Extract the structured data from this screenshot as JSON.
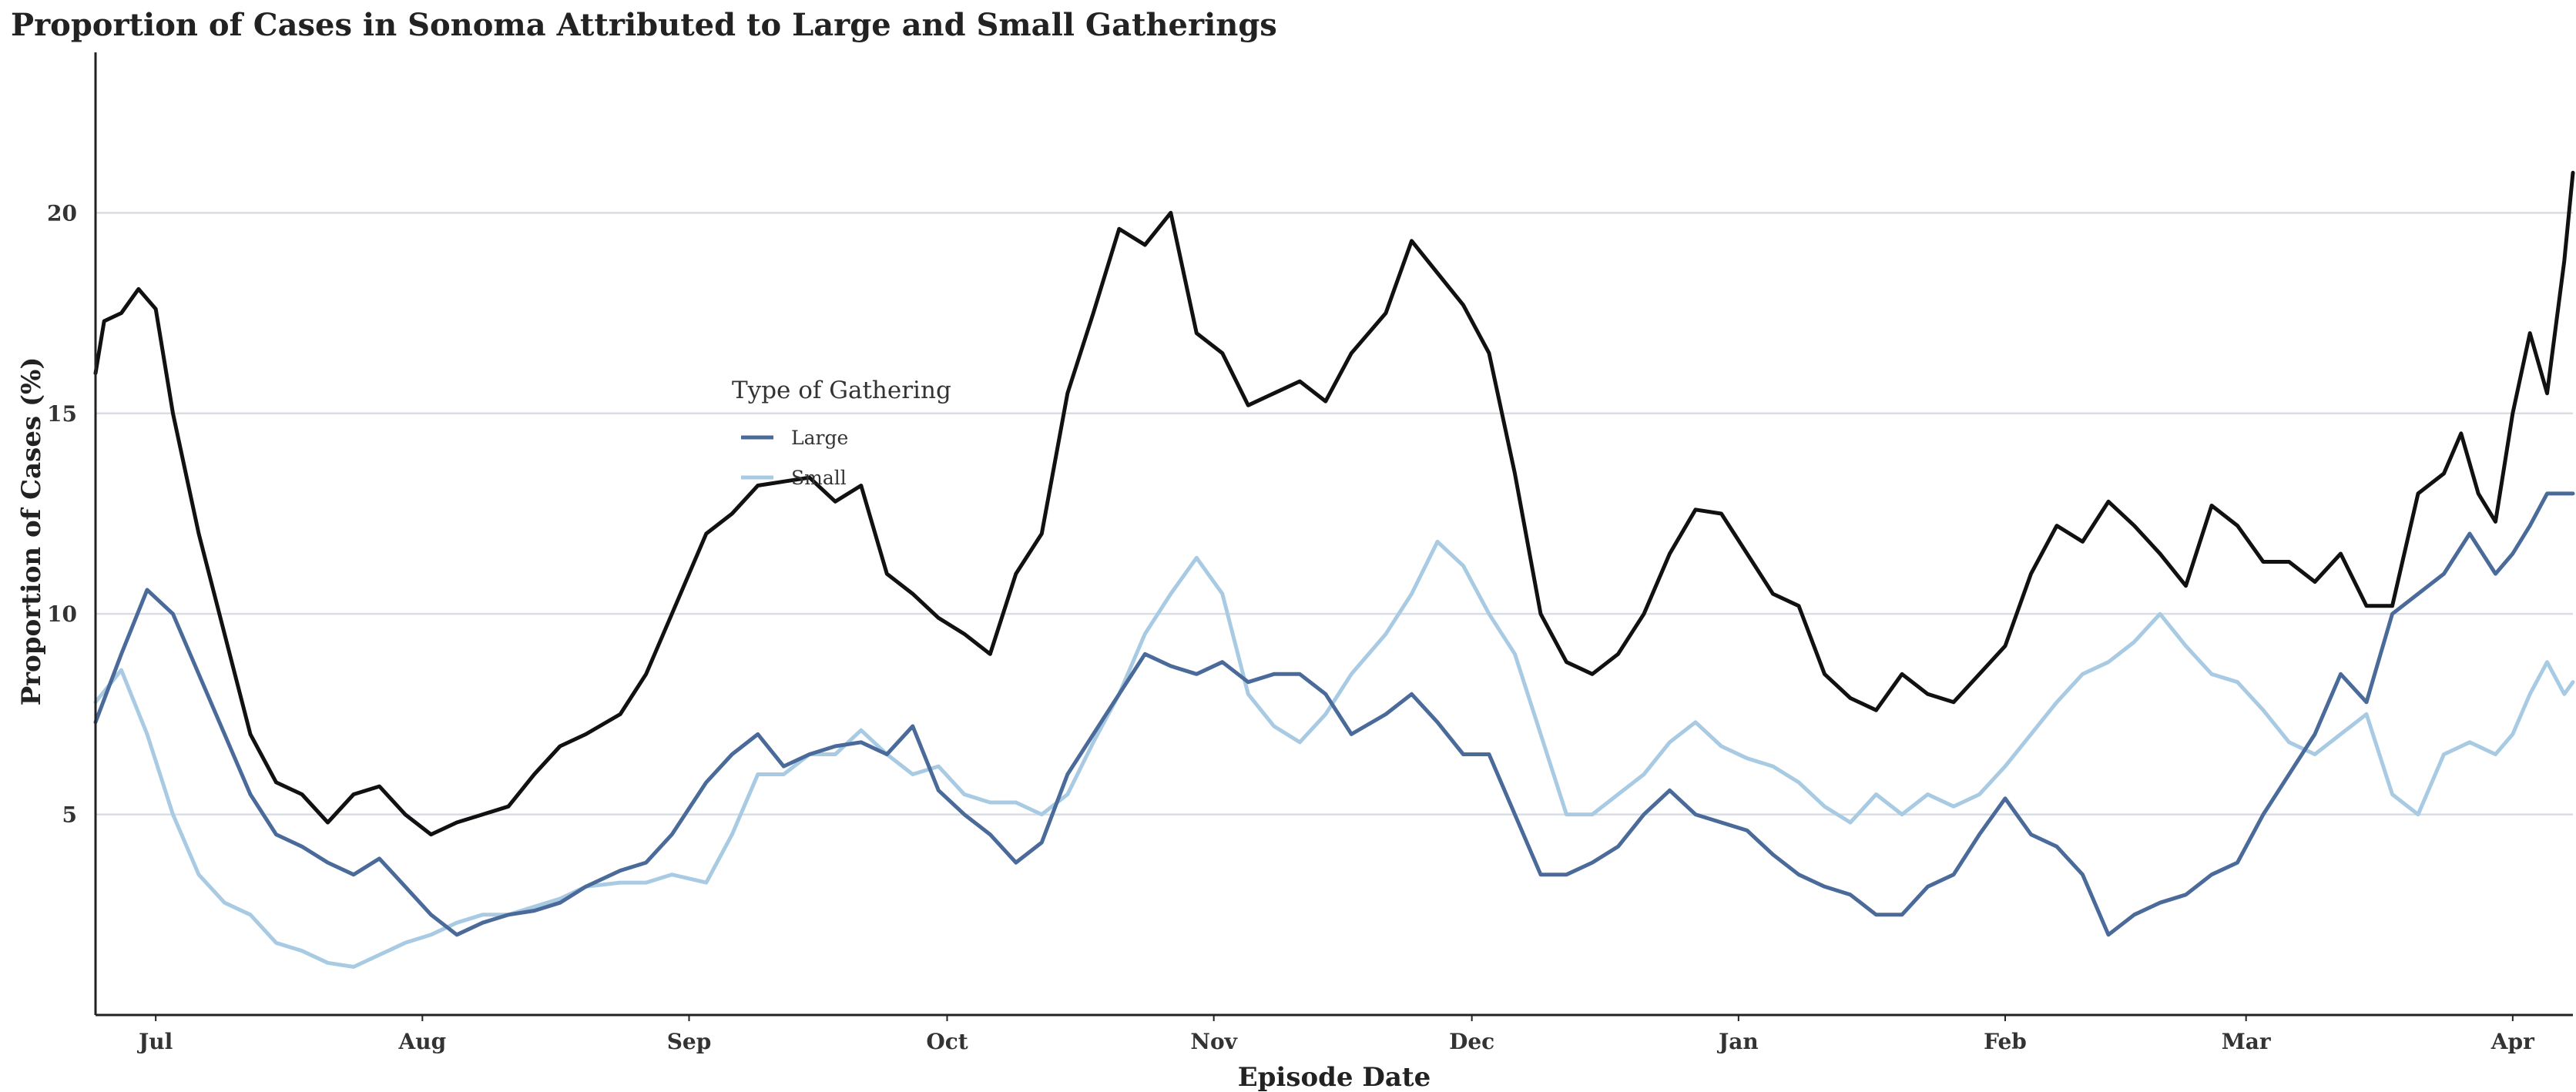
{
  "chart_data": {
    "type": "line",
    "title": "Proportion of Cases in Sonoma Attributed to Large and Small Gatherings",
    "xlabel": "Episode Date",
    "ylabel": "Proportion of Cases (%)",
    "x_ticks": [
      "Jul",
      "Aug",
      "Sep",
      "Oct",
      "Nov",
      "Dec",
      "Jan",
      "Feb",
      "Mar",
      "Apr"
    ],
    "x_tick_dates": [
      "2020-07-01",
      "2020-08-01",
      "2020-09-01",
      "2020-10-01",
      "2020-11-01",
      "2020-12-01",
      "2021-01-01",
      "2021-02-01",
      "2021-03-01",
      "2021-04-01"
    ],
    "x_range": [
      "2020-06-24",
      "2021-04-08"
    ],
    "y_ticks": [
      5,
      10,
      15,
      20
    ],
    "ylim": [
      0,
      24
    ],
    "grid": true,
    "legend": {
      "title": "Type of Gathering",
      "placement": "inside-upper-center",
      "entries": [
        "Large",
        "Small"
      ]
    },
    "colors": {
      "total": "#111111",
      "large": "#4a6a9a",
      "small": "#a8cbe3"
    },
    "series": [
      {
        "key": "total",
        "color": "#111111",
        "x": [
          "2020-06-24",
          "2020-06-25",
          "2020-06-27",
          "2020-06-29",
          "2020-07-01",
          "2020-07-03",
          "2020-07-06",
          "2020-07-09",
          "2020-07-12",
          "2020-07-15",
          "2020-07-18",
          "2020-07-21",
          "2020-07-24",
          "2020-07-27",
          "2020-07-30",
          "2020-08-02",
          "2020-08-05",
          "2020-08-08",
          "2020-08-11",
          "2020-08-14",
          "2020-08-17",
          "2020-08-20",
          "2020-08-24",
          "2020-08-27",
          "2020-08-30",
          "2020-09-03",
          "2020-09-06",
          "2020-09-09",
          "2020-09-12",
          "2020-09-15",
          "2020-09-18",
          "2020-09-21",
          "2020-09-24",
          "2020-09-27",
          "2020-09-30",
          "2020-10-03",
          "2020-10-06",
          "2020-10-09",
          "2020-10-12",
          "2020-10-15",
          "2020-10-18",
          "2020-10-21",
          "2020-10-24",
          "2020-10-27",
          "2020-10-30",
          "2020-11-02",
          "2020-11-05",
          "2020-11-08",
          "2020-11-11",
          "2020-11-14",
          "2020-11-17",
          "2020-11-21",
          "2020-11-24",
          "2020-11-27",
          "2020-11-30",
          "2020-12-03",
          "2020-12-06",
          "2020-12-09",
          "2020-12-12",
          "2020-12-15",
          "2020-12-18",
          "2020-12-21",
          "2020-12-24",
          "2020-12-27",
          "2020-12-30",
          "2021-01-02",
          "2021-01-05",
          "2021-01-08",
          "2021-01-11",
          "2021-01-14",
          "2021-01-17",
          "2021-01-20",
          "2021-01-23",
          "2021-01-26",
          "2021-01-29",
          "2021-02-01",
          "2021-02-04",
          "2021-02-07",
          "2021-02-10",
          "2021-02-13",
          "2021-02-16",
          "2021-02-19",
          "2021-02-22",
          "2021-02-25",
          "2021-02-28",
          "2021-03-03",
          "2021-03-06",
          "2021-03-09",
          "2021-03-12",
          "2021-03-15",
          "2021-03-18",
          "2021-03-21",
          "2021-03-24",
          "2021-03-26",
          "2021-03-28",
          "2021-03-30",
          "2021-04-01",
          "2021-04-03",
          "2021-04-05",
          "2021-04-07",
          "2021-04-08"
        ],
        "y": [
          16.0,
          17.3,
          17.5,
          18.1,
          17.6,
          15.0,
          12.0,
          9.5,
          7.0,
          5.8,
          5.5,
          4.8,
          5.5,
          5.7,
          5.0,
          4.5,
          4.8,
          5.0,
          5.2,
          6.0,
          6.7,
          7.0,
          7.5,
          8.5,
          10.0,
          12.0,
          12.5,
          13.2,
          13.3,
          13.4,
          12.8,
          13.2,
          11.0,
          10.5,
          9.9,
          9.5,
          9.0,
          11.0,
          12.0,
          15.5,
          17.5,
          19.6,
          19.2,
          20.0,
          17.0,
          16.5,
          15.2,
          15.5,
          15.8,
          15.3,
          16.5,
          17.5,
          19.3,
          18.5,
          17.7,
          16.5,
          13.5,
          10.0,
          8.8,
          8.5,
          9.0,
          10.0,
          11.5,
          12.6,
          12.5,
          11.5,
          10.5,
          10.2,
          8.5,
          7.9,
          7.6,
          8.5,
          8.0,
          7.8,
          8.5,
          9.2,
          11.0,
          12.2,
          11.8,
          12.8,
          12.2,
          11.5,
          10.7,
          12.7,
          12.2,
          11.3,
          11.3,
          10.8,
          11.5,
          10.2,
          10.2,
          13.0,
          13.5,
          14.5,
          13.0,
          12.3,
          15.0,
          17.0,
          15.5,
          18.8,
          21.0
        ]
      },
      {
        "key": "large",
        "name": "Large",
        "color": "#4a6a9a",
        "x": [
          "2020-06-24",
          "2020-06-27",
          "2020-06-30",
          "2020-07-03",
          "2020-07-06",
          "2020-07-09",
          "2020-07-12",
          "2020-07-15",
          "2020-07-18",
          "2020-07-21",
          "2020-07-24",
          "2020-07-27",
          "2020-07-30",
          "2020-08-02",
          "2020-08-05",
          "2020-08-08",
          "2020-08-11",
          "2020-08-14",
          "2020-08-17",
          "2020-08-20",
          "2020-08-24",
          "2020-08-27",
          "2020-08-30",
          "2020-09-03",
          "2020-09-06",
          "2020-09-09",
          "2020-09-12",
          "2020-09-15",
          "2020-09-18",
          "2020-09-21",
          "2020-09-24",
          "2020-09-27",
          "2020-09-30",
          "2020-10-03",
          "2020-10-06",
          "2020-10-09",
          "2020-10-12",
          "2020-10-15",
          "2020-10-18",
          "2020-10-21",
          "2020-10-24",
          "2020-10-27",
          "2020-10-30",
          "2020-11-02",
          "2020-11-05",
          "2020-11-08",
          "2020-11-11",
          "2020-11-14",
          "2020-11-17",
          "2020-11-21",
          "2020-11-24",
          "2020-11-27",
          "2020-11-30",
          "2020-12-03",
          "2020-12-06",
          "2020-12-09",
          "2020-12-12",
          "2020-12-15",
          "2020-12-18",
          "2020-12-21",
          "2020-12-24",
          "2020-12-27",
          "2020-12-30",
          "2021-01-02",
          "2021-01-05",
          "2021-01-08",
          "2021-01-11",
          "2021-01-14",
          "2021-01-17",
          "2021-01-20",
          "2021-01-23",
          "2021-01-26",
          "2021-01-29",
          "2021-02-01",
          "2021-02-04",
          "2021-02-07",
          "2021-02-10",
          "2021-02-13",
          "2021-02-16",
          "2021-02-19",
          "2021-02-22",
          "2021-02-25",
          "2021-02-28",
          "2021-03-03",
          "2021-03-06",
          "2021-03-09",
          "2021-03-12",
          "2021-03-15",
          "2021-03-18",
          "2021-03-21",
          "2021-03-24",
          "2021-03-27",
          "2021-03-30",
          "2021-04-01",
          "2021-04-03",
          "2021-04-05",
          "2021-04-07",
          "2021-04-08"
        ],
        "y": [
          7.3,
          9.0,
          10.6,
          10.0,
          8.5,
          7.0,
          5.5,
          4.5,
          4.2,
          3.8,
          3.5,
          3.9,
          3.2,
          2.5,
          2.0,
          2.3,
          2.5,
          2.6,
          2.8,
          3.2,
          3.6,
          3.8,
          4.5,
          5.8,
          6.5,
          7.0,
          6.2,
          6.5,
          6.7,
          6.8,
          6.5,
          7.2,
          5.6,
          5.0,
          4.5,
          3.8,
          4.3,
          6.0,
          7.0,
          8.0,
          9.0,
          8.7,
          8.5,
          8.8,
          8.3,
          8.5,
          8.5,
          8.0,
          7.0,
          7.5,
          8.0,
          7.3,
          6.5,
          6.5,
          5.0,
          3.5,
          3.5,
          3.8,
          4.2,
          5.0,
          5.6,
          5.0,
          4.8,
          4.6,
          4.0,
          3.5,
          3.2,
          3.0,
          2.5,
          2.5,
          3.2,
          3.5,
          4.5,
          5.4,
          4.5,
          4.2,
          3.5,
          2.0,
          2.5,
          2.8,
          3.0,
          3.5,
          3.8,
          5.0,
          6.0,
          7.0,
          8.5,
          7.8,
          10.0,
          10.5,
          11.0,
          12.0,
          11.0,
          11.5,
          12.2,
          13.0,
          13.0,
          13.0
        ]
      },
      {
        "key": "small",
        "name": "Small",
        "color": "#a8cbe3",
        "x": [
          "2020-06-24",
          "2020-06-27",
          "2020-06-30",
          "2020-07-03",
          "2020-07-06",
          "2020-07-09",
          "2020-07-12",
          "2020-07-15",
          "2020-07-18",
          "2020-07-21",
          "2020-07-24",
          "2020-07-27",
          "2020-07-30",
          "2020-08-02",
          "2020-08-05",
          "2020-08-08",
          "2020-08-11",
          "2020-08-14",
          "2020-08-17",
          "2020-08-20",
          "2020-08-24",
          "2020-08-27",
          "2020-08-30",
          "2020-09-03",
          "2020-09-06",
          "2020-09-09",
          "2020-09-12",
          "2020-09-15",
          "2020-09-18",
          "2020-09-21",
          "2020-09-24",
          "2020-09-27",
          "2020-09-30",
          "2020-10-03",
          "2020-10-06",
          "2020-10-09",
          "2020-10-12",
          "2020-10-15",
          "2020-10-18",
          "2020-10-21",
          "2020-10-24",
          "2020-10-27",
          "2020-10-30",
          "2020-11-02",
          "2020-11-05",
          "2020-11-08",
          "2020-11-11",
          "2020-11-14",
          "2020-11-17",
          "2020-11-21",
          "2020-11-24",
          "2020-11-27",
          "2020-11-30",
          "2020-12-03",
          "2020-12-06",
          "2020-12-09",
          "2020-12-12",
          "2020-12-15",
          "2020-12-18",
          "2020-12-21",
          "2020-12-24",
          "2020-12-27",
          "2020-12-30",
          "2021-01-02",
          "2021-01-05",
          "2021-01-08",
          "2021-01-11",
          "2021-01-14",
          "2021-01-17",
          "2021-01-20",
          "2021-01-23",
          "2021-01-26",
          "2021-01-29",
          "2021-02-01",
          "2021-02-04",
          "2021-02-07",
          "2021-02-10",
          "2021-02-13",
          "2021-02-16",
          "2021-02-19",
          "2021-02-22",
          "2021-02-25",
          "2021-02-28",
          "2021-03-03",
          "2021-03-06",
          "2021-03-09",
          "2021-03-12",
          "2021-03-15",
          "2021-03-18",
          "2021-03-21",
          "2021-03-24",
          "2021-03-27",
          "2021-03-30",
          "2021-04-01",
          "2021-04-03",
          "2021-04-05",
          "2021-04-07",
          "2021-04-08"
        ],
        "y": [
          7.8,
          8.6,
          7.0,
          5.0,
          3.5,
          2.8,
          2.5,
          1.8,
          1.6,
          1.3,
          1.2,
          1.5,
          1.8,
          2.0,
          2.3,
          2.5,
          2.5,
          2.7,
          2.9,
          3.2,
          3.3,
          3.3,
          3.5,
          3.3,
          4.5,
          6.0,
          6.0,
          6.5,
          6.5,
          7.1,
          6.5,
          6.0,
          6.2,
          5.5,
          5.3,
          5.3,
          5.0,
          5.5,
          6.8,
          8.0,
          9.5,
          10.5,
          11.4,
          10.5,
          8.0,
          7.2,
          6.8,
          7.5,
          8.5,
          9.5,
          10.5,
          11.8,
          11.2,
          10.0,
          9.0,
          7.0,
          5.0,
          5.0,
          5.5,
          6.0,
          6.8,
          7.3,
          6.7,
          6.4,
          6.2,
          5.8,
          5.2,
          4.8,
          5.5,
          5.0,
          5.5,
          5.2,
          5.5,
          6.2,
          7.0,
          7.8,
          8.5,
          8.8,
          9.3,
          10.0,
          9.2,
          8.5,
          8.3,
          7.6,
          6.8,
          6.5,
          7.0,
          7.5,
          5.5,
          5.0,
          6.5,
          6.8,
          6.5,
          7.0,
          8.0,
          8.8,
          8.0,
          8.3
        ]
      }
    ]
  }
}
